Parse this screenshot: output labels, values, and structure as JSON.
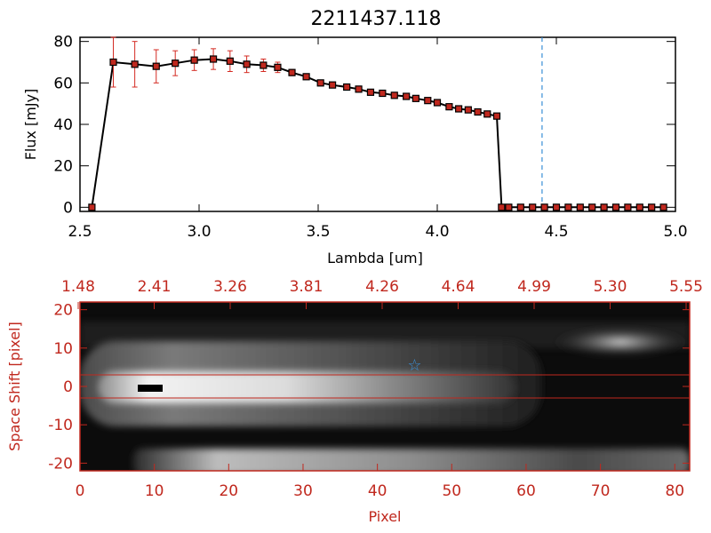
{
  "title": "2211437.118",
  "chart_data": [
    {
      "type": "line",
      "xlabel": "Lambda [um]",
      "ylabel": "Flux [mJy]",
      "xlim": [
        2.5,
        5.0
      ],
      "ylim": [
        -2,
        82
      ],
      "xticks": [
        "2.5",
        "3.0",
        "3.5",
        "4.0",
        "4.5",
        "5.0"
      ],
      "yticks": [
        "0",
        "20",
        "40",
        "60",
        "80"
      ],
      "marker_vline_x": 4.44,
      "series": [
        {
          "line_color": "#000000",
          "marker_color": "#c0281e",
          "errorbar_color": "#d42a22",
          "x": [
            2.55,
            2.64,
            2.73,
            2.82,
            2.9,
            2.98,
            3.06,
            3.13,
            3.2,
            3.27,
            3.33,
            3.39,
            3.45,
            3.51,
            3.56,
            3.62,
            3.67,
            3.72,
            3.77,
            3.82,
            3.87,
            3.91,
            3.96,
            4.0,
            4.05,
            4.09,
            4.13,
            4.17,
            4.21,
            4.25,
            4.27,
            4.3,
            4.35,
            4.4,
            4.45,
            4.5,
            4.55,
            4.6,
            4.65,
            4.7,
            4.75,
            4.8,
            4.85,
            4.9,
            4.95
          ],
          "y": [
            0,
            70,
            69,
            68,
            69.5,
            71,
            71.5,
            70.5,
            69,
            68.5,
            67.5,
            65,
            63,
            60,
            59,
            58,
            57,
            55.5,
            55,
            54,
            53.5,
            52.5,
            51.5,
            50.5,
            48.5,
            47.5,
            47,
            46,
            45,
            44,
            0,
            0,
            0,
            0,
            0,
            0,
            0,
            0,
            0,
            0,
            0,
            0,
            0,
            0,
            0
          ],
          "yerr": [
            0,
            12,
            11,
            8,
            6,
            5,
            5,
            5,
            4,
            3,
            2.5,
            1.5,
            1,
            0,
            0,
            0,
            0,
            0,
            0,
            0,
            0,
            0,
            0,
            0,
            0,
            0,
            0,
            0,
            0,
            0,
            0,
            0,
            0,
            0,
            0,
            0,
            0,
            0,
            0,
            0,
            0,
            0,
            0,
            0,
            0
          ]
        }
      ]
    },
    {
      "type": "heatmap",
      "xlabel": "Pixel",
      "ylabel": "Space Shift [pixel]",
      "xlim": [
        0,
        82
      ],
      "ylim": [
        -22,
        22
      ],
      "xticks": [
        "0",
        "10",
        "20",
        "30",
        "40",
        "50",
        "60",
        "70",
        "80"
      ],
      "yticks": [
        "-20",
        "-10",
        "0",
        "10",
        "20"
      ],
      "top_ticks": [
        "1.48",
        "2.41",
        "3.26",
        "3.81",
        "4.26",
        "4.64",
        "4.99",
        "5.30",
        "5.55"
      ],
      "hlines_y": [
        3,
        -3
      ],
      "star_marker": {
        "x": 45,
        "y": 5.5
      },
      "colors": {
        "axis": "#c0281e",
        "star": "#3a8fd6"
      }
    }
  ]
}
